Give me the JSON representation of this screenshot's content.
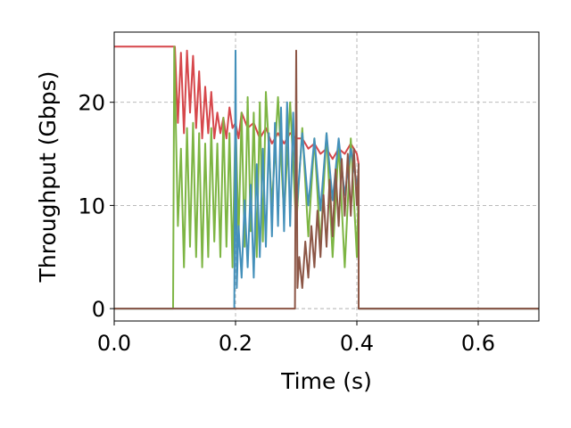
{
  "chart_data": {
    "type": "line",
    "title": "",
    "xlabel": "Time (s)",
    "ylabel": "Throughput (Gbps)",
    "xlim": [
      0.0,
      0.7
    ],
    "ylim": [
      -1.2,
      26.8
    ],
    "xticks": [
      0.0,
      0.2,
      0.4,
      0.6
    ],
    "xtick_labels": [
      "0.0",
      "0.2",
      "0.4",
      "0.6"
    ],
    "yticks": [
      0,
      10,
      20
    ],
    "ytick_labels": [
      "0",
      "10",
      "20"
    ],
    "grid": true,
    "legend": "none",
    "series": [
      {
        "color": "#d6474b",
        "x": [
          0.0,
          0.098,
          0.1,
          0.105,
          0.11,
          0.115,
          0.12,
          0.125,
          0.13,
          0.135,
          0.14,
          0.145,
          0.15,
          0.155,
          0.16,
          0.165,
          0.17,
          0.175,
          0.18,
          0.185,
          0.19,
          0.195,
          0.2,
          0.205,
          0.21,
          0.22,
          0.23,
          0.24,
          0.25,
          0.26,
          0.27,
          0.28,
          0.29,
          0.3,
          0.31,
          0.32,
          0.33,
          0.34,
          0.35,
          0.36,
          0.37,
          0.38,
          0.39,
          0.4,
          0.403,
          0.403,
          0.7
        ],
        "y": [
          25.4,
          25.4,
          25.4,
          18.0,
          24.8,
          17.0,
          25.0,
          19.0,
          24.5,
          17.5,
          23.0,
          16.5,
          21.5,
          17.0,
          21.0,
          16.5,
          19.0,
          17.0,
          18.5,
          16.5,
          19.5,
          17.5,
          18.0,
          16.5,
          19.0,
          17.5,
          18.0,
          16.5,
          17.5,
          16.0,
          17.0,
          16.0,
          17.0,
          16.5,
          16.5,
          15.5,
          16.0,
          15.0,
          15.5,
          14.5,
          15.5,
          15.0,
          16.0,
          15.0,
          14.0,
          0.0,
          0.0
        ]
      },
      {
        "color": "#7db543",
        "x": [
          0.0,
          0.097,
          0.099,
          0.105,
          0.11,
          0.115,
          0.12,
          0.125,
          0.13,
          0.135,
          0.14,
          0.145,
          0.15,
          0.155,
          0.16,
          0.165,
          0.17,
          0.175,
          0.18,
          0.185,
          0.19,
          0.195,
          0.2,
          0.205,
          0.21,
          0.215,
          0.22,
          0.225,
          0.23,
          0.235,
          0.24,
          0.245,
          0.25,
          0.26,
          0.27,
          0.28,
          0.29,
          0.3,
          0.31,
          0.32,
          0.33,
          0.34,
          0.35,
          0.36,
          0.37,
          0.38,
          0.39,
          0.4,
          0.403,
          0.403,
          0.7
        ],
        "y": [
          0.0,
          0.0,
          25.4,
          8.0,
          15.5,
          4.0,
          17.5,
          6.0,
          18.0,
          5.0,
          17.0,
          4.0,
          16.0,
          5.0,
          17.5,
          6.5,
          16.0,
          5.0,
          18.5,
          6.0,
          17.0,
          4.0,
          18.5,
          7.0,
          19.0,
          6.0,
          20.5,
          7.5,
          19.0,
          5.0,
          20.0,
          6.5,
          21.0,
          10.0,
          20.5,
          9.0,
          20.0,
          8.0,
          17.5,
          7.0,
          16.5,
          6.0,
          17.0,
          5.0,
          16.0,
          4.0,
          16.5,
          5.0,
          12.0,
          0.0,
          0.0
        ]
      },
      {
        "color": "#4490ba",
        "x": [
          0.0,
          0.198,
          0.2,
          0.202,
          0.205,
          0.21,
          0.215,
          0.22,
          0.225,
          0.23,
          0.235,
          0.24,
          0.245,
          0.25,
          0.255,
          0.26,
          0.265,
          0.27,
          0.275,
          0.28,
          0.285,
          0.29,
          0.295,
          0.3,
          0.31,
          0.32,
          0.33,
          0.34,
          0.35,
          0.36,
          0.37,
          0.38,
          0.39,
          0.4,
          0.403,
          0.403,
          0.7
        ],
        "y": [
          0.0,
          0.0,
          25.0,
          2.0,
          8.0,
          3.0,
          10.5,
          4.0,
          12.0,
          3.0,
          14.0,
          5.0,
          15.5,
          6.0,
          17.0,
          7.0,
          18.0,
          8.0,
          19.5,
          7.5,
          20.0,
          8.0,
          19.0,
          9.0,
          17.0,
          10.0,
          16.5,
          9.5,
          17.0,
          10.5,
          16.5,
          11.0,
          15.5,
          12.0,
          13.0,
          0.0,
          0.0
        ]
      },
      {
        "color": "#8c5646",
        "x": [
          0.0,
          0.298,
          0.3,
          0.302,
          0.305,
          0.31,
          0.315,
          0.32,
          0.325,
          0.33,
          0.335,
          0.34,
          0.345,
          0.35,
          0.355,
          0.36,
          0.365,
          0.37,
          0.375,
          0.38,
          0.385,
          0.39,
          0.395,
          0.4,
          0.403,
          0.403,
          0.7
        ],
        "y": [
          0.0,
          0.0,
          25.0,
          2.0,
          5.0,
          2.0,
          6.5,
          3.0,
          8.0,
          4.0,
          9.5,
          5.0,
          11.0,
          6.0,
          12.5,
          7.0,
          13.5,
          8.0,
          14.5,
          9.0,
          15.0,
          9.0,
          15.5,
          10.0,
          14.0,
          0.0,
          0.0
        ]
      }
    ]
  }
}
